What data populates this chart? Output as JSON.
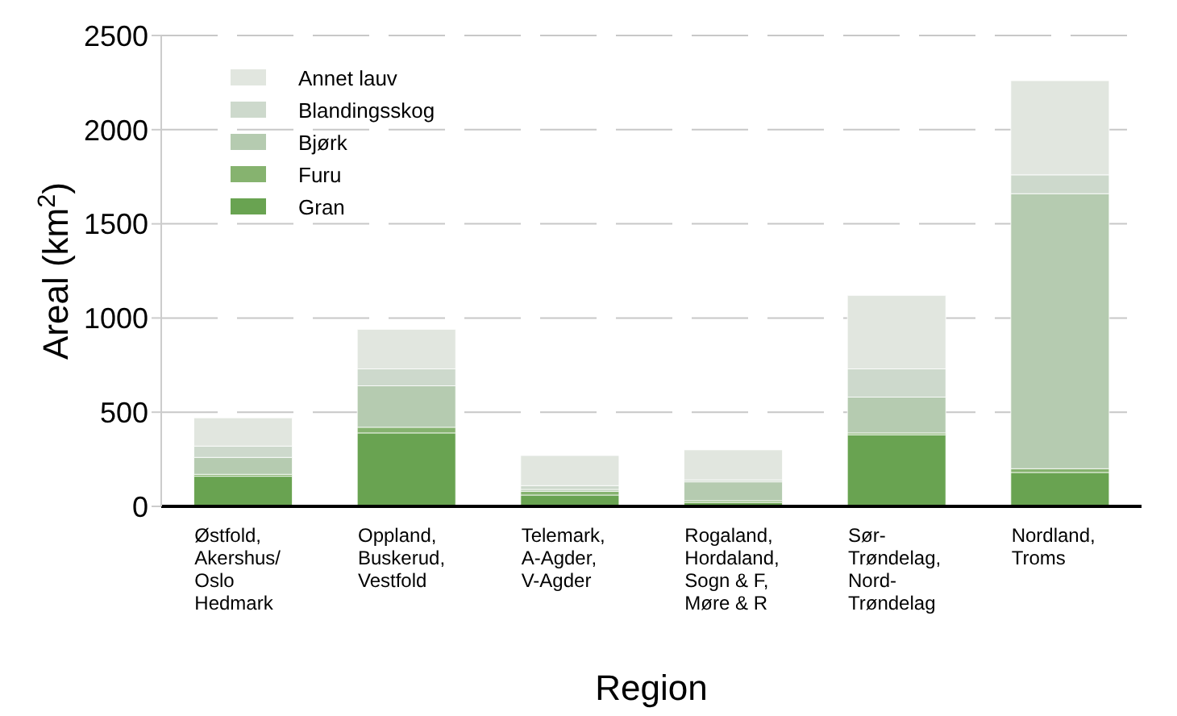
{
  "chart_data": {
    "type": "bar",
    "stacked": true,
    "xlabel": "Region",
    "ylabel": "Areal (km$^{2}$)",
    "categories": [
      "Østfold,\nAkershus/\nOslo\nHedmark",
      "Oppland,\nBuskerud,\nVestfold",
      "Telemark,\nA-Agder,\nV-Agder",
      "Rogaland,\nHordaland,\nSogn & F,\nMøre & R",
      "Sør-\nTrøndelag,\nNord-\nTrøndelag",
      "Nordland,\nTroms"
    ],
    "series": [
      {
        "name": "Gran",
        "color": "#69a351",
        "values": [
          160,
          390,
          60,
          20,
          380,
          180
        ]
      },
      {
        "name": "Furu",
        "color": "#86b36f",
        "values": [
          10,
          30,
          20,
          10,
          10,
          20
        ]
      },
      {
        "name": "Bjørk",
        "color": "#b5cbb0",
        "values": [
          90,
          220,
          10,
          100,
          190,
          1460
        ]
      },
      {
        "name": "Blandingsskog",
        "color": "#cdd9cc",
        "values": [
          60,
          90,
          20,
          10,
          150,
          100
        ]
      },
      {
        "name": "Annet lauv",
        "color": "#e1e6df",
        "values": [
          150,
          210,
          160,
          160,
          390,
          500
        ]
      }
    ],
    "ylim": [
      0,
      2500
    ],
    "yticks": [
      0,
      500,
      1000,
      1500,
      2000,
      2500
    ],
    "grid": "y",
    "legend": "top left"
  }
}
